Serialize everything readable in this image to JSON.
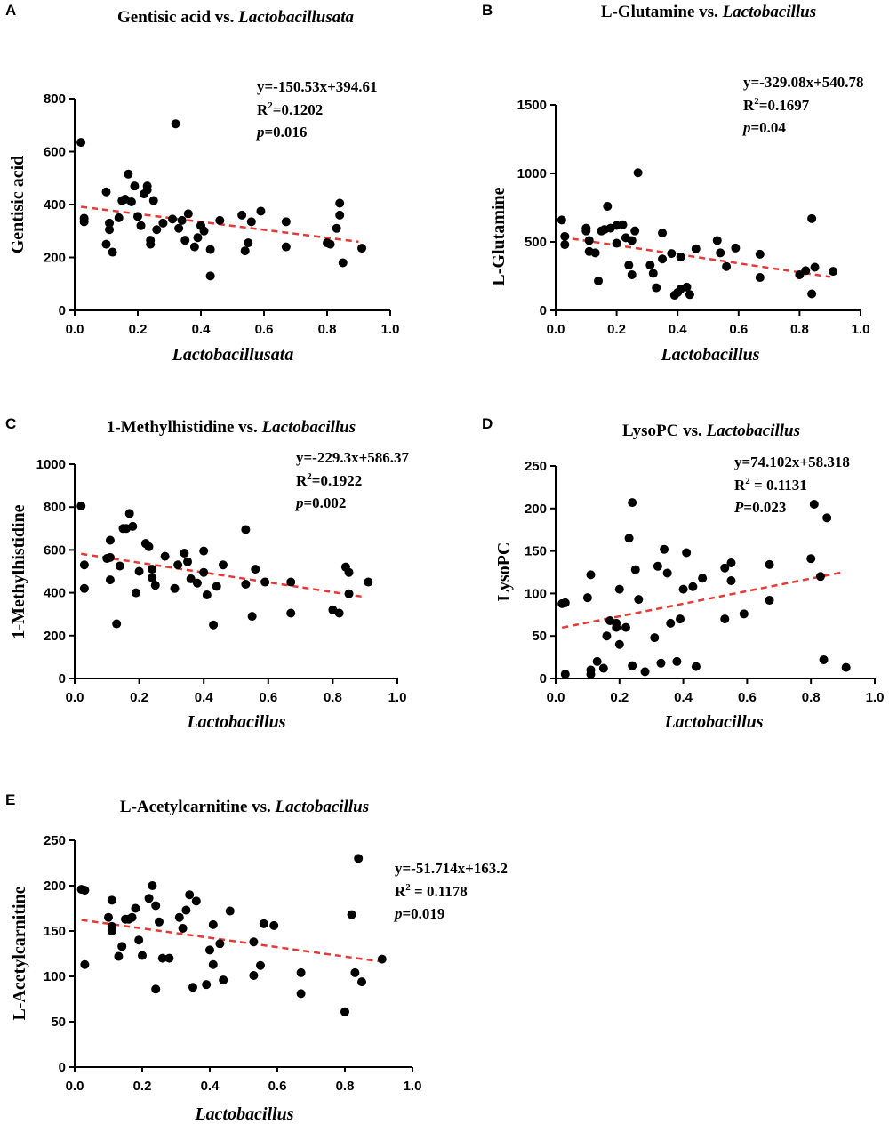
{
  "figure": {
    "colors": {
      "points": "#000000",
      "fit_line": "#e53935",
      "axes": "#000000"
    }
  },
  "chart_data": [
    {
      "panel": "A",
      "type": "scatter",
      "title_main": "Gentisic acid vs. ",
      "title_italic": "Lactobacillusata",
      "xlabel": "Lactobacillusata",
      "ylabel": "Gentisic acid",
      "xlim": [
        0,
        1.0
      ],
      "ylim": [
        0,
        800
      ],
      "xticks": [
        0,
        0.2,
        0.4,
        0.6,
        0.8,
        1.0
      ],
      "xtick_labels": [
        "0.0",
        "0.2",
        "0.4",
        "0.6",
        "0.8",
        "1.0"
      ],
      "yticks": [
        0,
        200,
        400,
        600,
        800
      ],
      "ytick_labels": [
        "0",
        "200",
        "400",
        "600",
        "800"
      ],
      "fit": {
        "slope": -150.53,
        "intercept": 394.61,
        "x_range": [
          0.02,
          0.9
        ]
      },
      "stats": {
        "equation": "y=-150.53x+394.61",
        "r2_label": "R",
        "r2_sup": "2",
        "r2_value": "=0.1202",
        "p_label": "p",
        "p_value": "=0.016"
      },
      "points": [
        [
          0.02,
          635
        ],
        [
          0.03,
          335
        ],
        [
          0.03,
          348
        ],
        [
          0.1,
          448
        ],
        [
          0.1,
          250
        ],
        [
          0.11,
          330
        ],
        [
          0.11,
          305
        ],
        [
          0.12,
          220
        ],
        [
          0.14,
          350
        ],
        [
          0.15,
          415
        ],
        [
          0.16,
          420
        ],
        [
          0.17,
          515
        ],
        [
          0.18,
          410
        ],
        [
          0.19,
          470
        ],
        [
          0.2,
          355
        ],
        [
          0.21,
          320
        ],
        [
          0.22,
          440
        ],
        [
          0.23,
          470
        ],
        [
          0.23,
          455
        ],
        [
          0.24,
          265
        ],
        [
          0.24,
          250
        ],
        [
          0.25,
          415
        ],
        [
          0.26,
          305
        ],
        [
          0.28,
          330
        ],
        [
          0.31,
          345
        ],
        [
          0.32,
          705
        ],
        [
          0.33,
          310
        ],
        [
          0.34,
          340
        ],
        [
          0.35,
          265
        ],
        [
          0.36,
          365
        ],
        [
          0.38,
          240
        ],
        [
          0.39,
          275
        ],
        [
          0.4,
          320
        ],
        [
          0.41,
          300
        ],
        [
          0.43,
          230
        ],
        [
          0.43,
          130
        ],
        [
          0.46,
          340
        ],
        [
          0.53,
          360
        ],
        [
          0.54,
          225
        ],
        [
          0.55,
          255
        ],
        [
          0.56,
          335
        ],
        [
          0.59,
          375
        ],
        [
          0.67,
          335
        ],
        [
          0.67,
          240
        ],
        [
          0.8,
          255
        ],
        [
          0.81,
          250
        ],
        [
          0.83,
          310
        ],
        [
          0.84,
          360
        ],
        [
          0.84,
          405
        ],
        [
          0.85,
          180
        ],
        [
          0.91,
          235
        ]
      ]
    },
    {
      "panel": "B",
      "type": "scatter",
      "title_main": "L-Glutamine vs. ",
      "title_italic": "Lactobacillus",
      "xlabel": "Lactobacillus",
      "ylabel": "L-Glutamine",
      "xlim": [
        0,
        1.0
      ],
      "ylim": [
        0,
        1500
      ],
      "xticks": [
        0,
        0.2,
        0.4,
        0.6,
        0.8,
        1.0
      ],
      "xtick_labels": [
        "0.0",
        "0.2",
        "0.4",
        "0.6",
        "0.8",
        "1.0"
      ],
      "yticks": [
        0,
        500,
        1000,
        1500
      ],
      "ytick_labels": [
        "0",
        "500",
        "1000",
        "1500"
      ],
      "fit": {
        "slope": -329.08,
        "intercept": 540.78,
        "x_range": [
          0.02,
          0.9
        ]
      },
      "stats": {
        "equation": "y=-329.08x+540.78",
        "r2_label": "R",
        "r2_sup": "2",
        "r2_value": "=0.1697",
        "p_label": "p",
        "p_value": "=0.04"
      },
      "points": [
        [
          0.02,
          660
        ],
        [
          0.03,
          540
        ],
        [
          0.03,
          480
        ],
        [
          0.1,
          600
        ],
        [
          0.1,
          580
        ],
        [
          0.11,
          510
        ],
        [
          0.11,
          430
        ],
        [
          0.13,
          420
        ],
        [
          0.14,
          215
        ],
        [
          0.15,
          580
        ],
        [
          0.16,
          590
        ],
        [
          0.17,
          760
        ],
        [
          0.18,
          600
        ],
        [
          0.2,
          620
        ],
        [
          0.2,
          490
        ],
        [
          0.22,
          625
        ],
        [
          0.23,
          530
        ],
        [
          0.24,
          330
        ],
        [
          0.25,
          260
        ],
        [
          0.25,
          510
        ],
        [
          0.26,
          580
        ],
        [
          0.27,
          1005
        ],
        [
          0.31,
          330
        ],
        [
          0.32,
          270
        ],
        [
          0.33,
          165
        ],
        [
          0.35,
          565
        ],
        [
          0.35,
          375
        ],
        [
          0.38,
          415
        ],
        [
          0.39,
          110
        ],
        [
          0.4,
          130
        ],
        [
          0.41,
          390
        ],
        [
          0.41,
          155
        ],
        [
          0.43,
          170
        ],
        [
          0.44,
          115
        ],
        [
          0.46,
          450
        ],
        [
          0.53,
          510
        ],
        [
          0.54,
          420
        ],
        [
          0.56,
          320
        ],
        [
          0.59,
          455
        ],
        [
          0.67,
          410
        ],
        [
          0.67,
          240
        ],
        [
          0.8,
          260
        ],
        [
          0.82,
          290
        ],
        [
          0.84,
          120
        ],
        [
          0.84,
          670
        ],
        [
          0.85,
          315
        ],
        [
          0.91,
          285
        ]
      ]
    },
    {
      "panel": "C",
      "type": "scatter",
      "title_main": "1-Methylhistidine vs. ",
      "title_italic": "Lactobacillus",
      "xlabel": "Lactobacillus",
      "ylabel": "1-Methylhistidine",
      "xlim": [
        0,
        1.0
      ],
      "ylim": [
        0,
        1000
      ],
      "xticks": [
        0,
        0.2,
        0.4,
        0.6,
        0.8,
        1.0
      ],
      "xtick_labels": [
        "0.0",
        "0.2",
        "0.4",
        "0.6",
        "0.8",
        "1.0"
      ],
      "yticks": [
        0,
        200,
        400,
        600,
        800,
        1000
      ],
      "ytick_labels": [
        "0",
        "200",
        "400",
        "600",
        "800",
        "1000"
      ],
      "fit": {
        "slope": -229.3,
        "intercept": 586.37,
        "x_range": [
          0.02,
          0.9
        ]
      },
      "stats": {
        "equation": "y=-229.3x+586.37",
        "r2_label": "R",
        "r2_sup": "2",
        "r2_value": "=0.1922",
        "p_label": "p",
        "p_value": "=0.002"
      },
      "points": [
        [
          0.02,
          805
        ],
        [
          0.03,
          530
        ],
        [
          0.03,
          420
        ],
        [
          0.1,
          560
        ],
        [
          0.11,
          645
        ],
        [
          0.11,
          565
        ],
        [
          0.11,
          460
        ],
        [
          0.13,
          255
        ],
        [
          0.14,
          525
        ],
        [
          0.15,
          700
        ],
        [
          0.16,
          700
        ],
        [
          0.17,
          770
        ],
        [
          0.18,
          710
        ],
        [
          0.19,
          400
        ],
        [
          0.2,
          500
        ],
        [
          0.22,
          630
        ],
        [
          0.23,
          615
        ],
        [
          0.24,
          510
        ],
        [
          0.24,
          470
        ],
        [
          0.25,
          435
        ],
        [
          0.28,
          570
        ],
        [
          0.31,
          420
        ],
        [
          0.32,
          530
        ],
        [
          0.34,
          585
        ],
        [
          0.35,
          545
        ],
        [
          0.36,
          465
        ],
        [
          0.38,
          445
        ],
        [
          0.4,
          495
        ],
        [
          0.4,
          595
        ],
        [
          0.41,
          390
        ],
        [
          0.43,
          250
        ],
        [
          0.44,
          430
        ],
        [
          0.46,
          530
        ],
        [
          0.53,
          695
        ],
        [
          0.53,
          440
        ],
        [
          0.55,
          290
        ],
        [
          0.56,
          510
        ],
        [
          0.59,
          450
        ],
        [
          0.67,
          450
        ],
        [
          0.67,
          305
        ],
        [
          0.8,
          320
        ],
        [
          0.82,
          305
        ],
        [
          0.84,
          520
        ],
        [
          0.85,
          495
        ],
        [
          0.85,
          395
        ],
        [
          0.91,
          450
        ]
      ]
    },
    {
      "panel": "D",
      "type": "scatter",
      "title_main": "LysoPC vs. ",
      "title_italic": "Lactobacillus",
      "xlabel": "Lactobacillus",
      "ylabel": "LysoPC",
      "xlim": [
        0,
        1.0
      ],
      "ylim": [
        0,
        250
      ],
      "xticks": [
        0,
        0.2,
        0.4,
        0.6,
        0.8,
        1.0
      ],
      "xtick_labels": [
        "0.0",
        "0.2",
        "0.4",
        "0.6",
        "0.8",
        "1.0"
      ],
      "yticks": [
        0,
        50,
        100,
        150,
        200,
        250
      ],
      "ytick_labels": [
        "0",
        "50",
        "100",
        "150",
        "200",
        "250"
      ],
      "fit": {
        "slope": 74.102,
        "intercept": 58.318,
        "x_range": [
          0.02,
          0.9
        ]
      },
      "stats": {
        "equation": "y=74.102x+58.318",
        "r2_label": "R",
        "r2_sup": "2",
        "r2_value": " = 0.1131",
        "p_label": "P",
        "p_value": "=0.023"
      },
      "points": [
        [
          0.02,
          88
        ],
        [
          0.03,
          89
        ],
        [
          0.03,
          5
        ],
        [
          0.1,
          95
        ],
        [
          0.11,
          122
        ],
        [
          0.11,
          5
        ],
        [
          0.11,
          10
        ],
        [
          0.13,
          20
        ],
        [
          0.15,
          12
        ],
        [
          0.16,
          50
        ],
        [
          0.17,
          68
        ],
        [
          0.19,
          60
        ],
        [
          0.19,
          65
        ],
        [
          0.2,
          40
        ],
        [
          0.2,
          105
        ],
        [
          0.22,
          60
        ],
        [
          0.23,
          165
        ],
        [
          0.24,
          207
        ],
        [
          0.24,
          15
        ],
        [
          0.25,
          128
        ],
        [
          0.26,
          93
        ],
        [
          0.28,
          8
        ],
        [
          0.31,
          48
        ],
        [
          0.32,
          132
        ],
        [
          0.33,
          18
        ],
        [
          0.34,
          152
        ],
        [
          0.35,
          124
        ],
        [
          0.36,
          65
        ],
        [
          0.38,
          20
        ],
        [
          0.39,
          70
        ],
        [
          0.4,
          105
        ],
        [
          0.41,
          148
        ],
        [
          0.43,
          108
        ],
        [
          0.44,
          14
        ],
        [
          0.46,
          118
        ],
        [
          0.53,
          130
        ],
        [
          0.53,
          70
        ],
        [
          0.55,
          115
        ],
        [
          0.55,
          136
        ],
        [
          0.59,
          76
        ],
        [
          0.67,
          134
        ],
        [
          0.67,
          92
        ],
        [
          0.8,
          141
        ],
        [
          0.81,
          205
        ],
        [
          0.83,
          120
        ],
        [
          0.84,
          22
        ],
        [
          0.85,
          189
        ],
        [
          0.91,
          13
        ]
      ]
    },
    {
      "panel": "E",
      "type": "scatter",
      "title_main": "L-Acetylcarnitine vs. ",
      "title_italic": "Lactobacillus",
      "xlabel": "Lactobacillus",
      "ylabel": "L-Acetylcarnitine",
      "xlim": [
        0,
        1.0
      ],
      "ylim": [
        0,
        250
      ],
      "xticks": [
        0,
        0.2,
        0.4,
        0.6,
        0.8,
        1.0
      ],
      "xtick_labels": [
        "0.0",
        "0.2",
        "0.4",
        "0.6",
        "0.8",
        "1.0"
      ],
      "yticks": [
        0,
        50,
        100,
        150,
        200,
        250
      ],
      "ytick_labels": [
        "0",
        "50",
        "100",
        "150",
        "200",
        "250"
      ],
      "fit": {
        "slope": -51.714,
        "intercept": 163.2,
        "x_range": [
          0.02,
          0.9
        ]
      },
      "stats": {
        "equation": "y=-51.714x+163.2",
        "r2_label": "R",
        "r2_sup": "2",
        "r2_value": " = 0.1178",
        "p_label": "p",
        "p_value": "=0.019"
      },
      "points": [
        [
          0.02,
          196
        ],
        [
          0.03,
          195
        ],
        [
          0.03,
          113
        ],
        [
          0.1,
          165
        ],
        [
          0.11,
          150
        ],
        [
          0.11,
          155
        ],
        [
          0.11,
          184
        ],
        [
          0.13,
          122
        ],
        [
          0.14,
          133
        ],
        [
          0.15,
          163
        ],
        [
          0.16,
          163
        ],
        [
          0.17,
          165
        ],
        [
          0.18,
          175
        ],
        [
          0.19,
          140
        ],
        [
          0.2,
          123
        ],
        [
          0.22,
          186
        ],
        [
          0.23,
          200
        ],
        [
          0.24,
          86
        ],
        [
          0.24,
          178
        ],
        [
          0.25,
          160
        ],
        [
          0.26,
          120
        ],
        [
          0.28,
          120
        ],
        [
          0.31,
          165
        ],
        [
          0.32,
          153
        ],
        [
          0.33,
          173
        ],
        [
          0.34,
          190
        ],
        [
          0.35,
          88
        ],
        [
          0.36,
          183
        ],
        [
          0.39,
          91
        ],
        [
          0.4,
          129
        ],
        [
          0.41,
          157
        ],
        [
          0.41,
          113
        ],
        [
          0.43,
          136
        ],
        [
          0.44,
          96
        ],
        [
          0.46,
          172
        ],
        [
          0.53,
          138
        ],
        [
          0.53,
          101
        ],
        [
          0.55,
          112
        ],
        [
          0.56,
          158
        ],
        [
          0.59,
          156
        ],
        [
          0.67,
          104
        ],
        [
          0.67,
          81
        ],
        [
          0.8,
          61
        ],
        [
          0.82,
          168
        ],
        [
          0.83,
          104
        ],
        [
          0.84,
          230
        ],
        [
          0.85,
          94
        ],
        [
          0.91,
          119
        ]
      ]
    }
  ]
}
